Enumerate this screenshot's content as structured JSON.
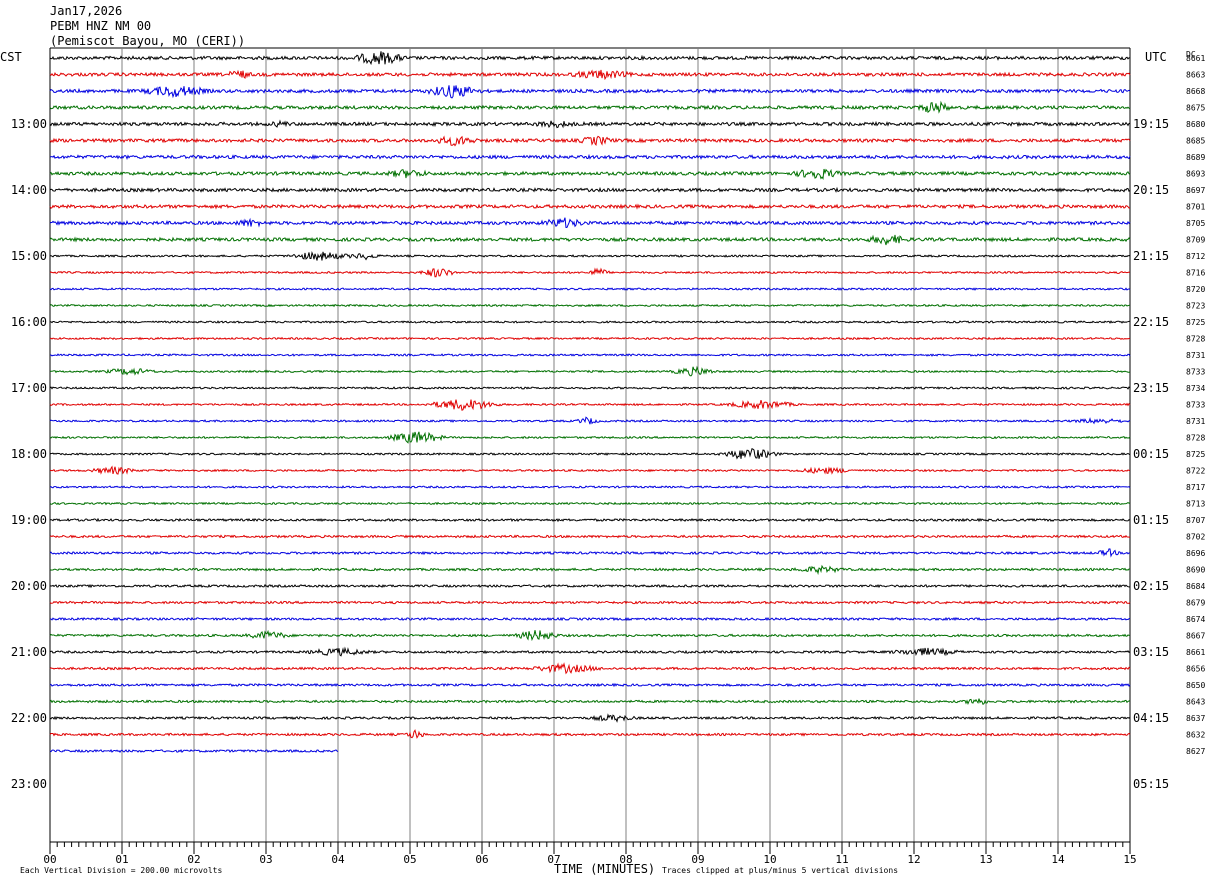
{
  "header": {
    "date": "Jan17,2026",
    "station": "PEBM HNZ NM 00",
    "location": "(Pemiscot Bayou, MO (CERI))"
  },
  "axis_labels": {
    "left_timezone": "CST",
    "right_timezone": "UTC",
    "dc_label": "DC"
  },
  "footer": {
    "scale_note": "Each Vertical Division = 200.00 microvolts",
    "x_title": "TIME (MINUTES)",
    "clip_note": "Traces clipped at plus/minus 5 vertical divisions"
  },
  "colors": {
    "trace_cycle": [
      "#000000",
      "#e00000",
      "#0000e0",
      "#007000"
    ],
    "grid": "#808080"
  },
  "chart_data": {
    "type": "line",
    "x_ticks": [
      "00",
      "01",
      "02",
      "03",
      "04",
      "05",
      "06",
      "07",
      "08",
      "09",
      "10",
      "11",
      "12",
      "13",
      "14",
      "15"
    ],
    "xlim": [
      0,
      15
    ],
    "left_hour_labels": [
      "13:00",
      "14:00",
      "15:00",
      "16:00",
      "17:00",
      "18:00",
      "19:00",
      "20:00",
      "21:00",
      "22:00",
      "23:00"
    ],
    "right_hour_labels": [
      "19:15",
      "20:15",
      "21:15",
      "22:15",
      "23:15",
      "00:15",
      "01:15",
      "02:15",
      "03:15",
      "04:15",
      "05:15"
    ],
    "rows_per_hour": 4,
    "first_labeled_row": 4,
    "total_row_slots": 48,
    "last_row_end_minute": 4,
    "dc_offsets": [
      "8661",
      "8663",
      "8668",
      "8675",
      "8680",
      "8685",
      "8689",
      "8693",
      "8697",
      "8701",
      "8705",
      "8709",
      "8712",
      "8716",
      "8720",
      "8723",
      "8725",
      "8728",
      "8731",
      "8733",
      "8734",
      "8733",
      "8731",
      "8728",
      "8725",
      "8722",
      "8717",
      "8713",
      "8707",
      "8702",
      "8696",
      "8690",
      "8684",
      "8679",
      "8674",
      "8667",
      "8661",
      "8656",
      "8650",
      "8643",
      "8637",
      "8632",
      "8627"
    ]
  }
}
